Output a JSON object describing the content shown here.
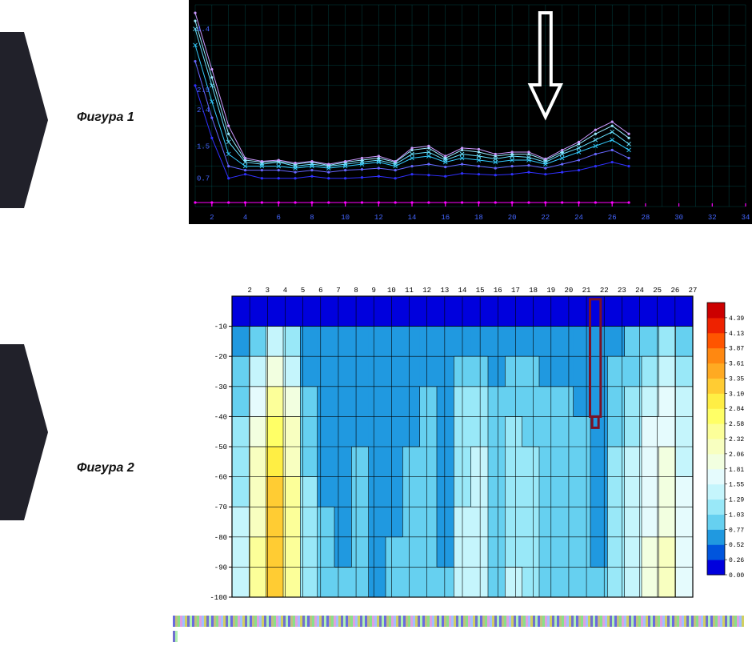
{
  "figure1": {
    "label": "Фигура 1",
    "type": "line",
    "background_color": "#000000",
    "gridline_color": "#00cccc",
    "axis_label_color": "#4466ff",
    "xaxis_tick_color": "#ff00ff",
    "xlim": [
      1,
      34
    ],
    "ylim": [
      0,
      5
    ],
    "xtick_step": 2,
    "yticks": [
      0.7,
      1.5,
      2.4,
      2.9,
      4.4
    ],
    "font_size": 9,
    "arrow": {
      "x": 22,
      "color": "#ffffff",
      "stroke_width": 4,
      "head_w": 38,
      "head_h": 40,
      "shaft_h": 90,
      "shaft_w": 14
    },
    "series": [
      {
        "color": "#ff00ff",
        "width": 1,
        "marker": "dot",
        "y": [
          0.1,
          0.1,
          0.1,
          0.1,
          0.1,
          0.1,
          0.1,
          0.1,
          0.1,
          0.1,
          0.1,
          0.1,
          0.1,
          0.1,
          0.1,
          0.1,
          0.1,
          0.1,
          0.1,
          0.1,
          0.1,
          0.1,
          0.1,
          0.1,
          0.1,
          0.1,
          0.1
        ]
      },
      {
        "color": "#3030ff",
        "width": 1,
        "marker": "dot",
        "y": [
          3.0,
          1.7,
          0.7,
          0.8,
          0.7,
          0.7,
          0.7,
          0.75,
          0.7,
          0.7,
          0.72,
          0.75,
          0.7,
          0.8,
          0.78,
          0.75,
          0.82,
          0.8,
          0.78,
          0.8,
          0.85,
          0.8,
          0.85,
          0.9,
          1.0,
          1.1,
          1.0
        ]
      },
      {
        "color": "#6666ff",
        "width": 1,
        "marker": "dot",
        "y": [
          3.6,
          2.2,
          1.0,
          0.9,
          0.9,
          0.9,
          0.85,
          0.9,
          0.85,
          0.9,
          0.92,
          0.95,
          0.9,
          1.0,
          1.05,
          0.98,
          1.05,
          1.0,
          0.95,
          1.0,
          1.02,
          0.95,
          1.05,
          1.15,
          1.3,
          1.4,
          1.2
        ]
      },
      {
        "color": "#33ccff",
        "width": 1,
        "marker": "x",
        "y": [
          4.0,
          2.6,
          1.3,
          1.0,
          1.0,
          1.0,
          0.95,
          1.0,
          0.95,
          1.0,
          1.05,
          1.1,
          1.0,
          1.2,
          1.25,
          1.1,
          1.2,
          1.15,
          1.1,
          1.15,
          1.15,
          1.05,
          1.2,
          1.35,
          1.5,
          1.65,
          1.4
        ]
      },
      {
        "color": "#66e0ff",
        "width": 1,
        "marker": "x",
        "y": [
          4.4,
          3.0,
          1.6,
          1.1,
          1.05,
          1.1,
          1.0,
          1.05,
          1.0,
          1.05,
          1.1,
          1.15,
          1.05,
          1.3,
          1.35,
          1.15,
          1.3,
          1.25,
          1.18,
          1.25,
          1.22,
          1.1,
          1.3,
          1.45,
          1.65,
          1.85,
          1.55
        ]
      },
      {
        "color": "#99eaff",
        "width": 1,
        "marker": "dot",
        "y": [
          4.6,
          3.2,
          1.8,
          1.15,
          1.1,
          1.12,
          1.05,
          1.1,
          1.02,
          1.1,
          1.15,
          1.2,
          1.1,
          1.4,
          1.45,
          1.2,
          1.4,
          1.35,
          1.25,
          1.3,
          1.3,
          1.15,
          1.35,
          1.55,
          1.8,
          2.0,
          1.7
        ]
      },
      {
        "color": "#cc99ff",
        "width": 1,
        "marker": "dot",
        "y": [
          4.8,
          3.4,
          2.0,
          1.2,
          1.12,
          1.15,
          1.08,
          1.12,
          1.05,
          1.12,
          1.2,
          1.25,
          1.12,
          1.45,
          1.5,
          1.25,
          1.45,
          1.42,
          1.3,
          1.35,
          1.35,
          1.18,
          1.4,
          1.6,
          1.9,
          2.1,
          1.8
        ]
      }
    ]
  },
  "figure2": {
    "label": "Фигура 2",
    "type": "heatmap",
    "plot_bg": "#ffffff",
    "gridline_color": "#000000",
    "axis_font_size": 9,
    "axis_color": "#000000",
    "xlim": [
      1,
      27
    ],
    "ylim": [
      -100,
      0
    ],
    "xtick_step": 1,
    "ytick_step": 10,
    "marker": {
      "x": 21.5,
      "y_top": -1,
      "y_bot": -40,
      "color": "#7a1225",
      "stroke_width": 3,
      "width": 0.6
    },
    "colorscale": {
      "levels": [
        0.0,
        0.26,
        0.52,
        0.77,
        1.03,
        1.29,
        1.55,
        1.81,
        2.06,
        2.32,
        2.58,
        2.84,
        3.1,
        3.35,
        3.61,
        3.87,
        4.13,
        4.39
      ],
      "colors": [
        "#0000dd",
        "#0055dd",
        "#2099e0",
        "#66d0f0",
        "#99e8f8",
        "#c5f5fc",
        "#e5fbfd",
        "#f2ffe0",
        "#f8ffc0",
        "#fcff99",
        "#ffff66",
        "#ffee44",
        "#ffcc33",
        "#ffaa22",
        "#ff8811",
        "#ff5500",
        "#ee2200",
        "#cc0000"
      ],
      "font_size": 8
    },
    "grid": {
      "cols": 27,
      "rows": 10,
      "values": [
        [
          0.05,
          0.05,
          0.05,
          0.05,
          0.05,
          0.05,
          0.05,
          0.05,
          0.05,
          0.05,
          0.05,
          0.05,
          0.05,
          0.05,
          0.05,
          0.05,
          0.05,
          0.05,
          0.05,
          0.05,
          0.05,
          0.05,
          0.05,
          0.05,
          0.05,
          0.05,
          0.05
        ],
        [
          0.6,
          0.9,
          1.3,
          1.1,
          0.6,
          0.55,
          0.55,
          0.6,
          0.55,
          0.55,
          0.55,
          0.6,
          0.55,
          0.7,
          0.75,
          0.6,
          0.7,
          0.65,
          0.6,
          0.62,
          0.6,
          0.58,
          0.7,
          0.8,
          0.9,
          1.05,
          0.9
        ],
        [
          0.8,
          1.4,
          2.0,
          1.5,
          0.7,
          0.6,
          0.6,
          0.65,
          0.6,
          0.62,
          0.62,
          0.7,
          0.6,
          0.9,
          0.95,
          0.7,
          0.85,
          0.8,
          0.7,
          0.72,
          0.65,
          0.62,
          0.85,
          1.0,
          1.2,
          1.35,
          1.1
        ],
        [
          1.0,
          1.8,
          2.5,
          1.9,
          0.85,
          0.65,
          0.65,
          0.7,
          0.62,
          0.65,
          0.7,
          0.8,
          0.65,
          1.05,
          1.15,
          0.8,
          1.0,
          0.92,
          0.8,
          0.8,
          0.72,
          0.65,
          0.95,
          1.15,
          1.4,
          1.6,
          1.3
        ],
        [
          1.1,
          2.0,
          2.8,
          2.1,
          0.95,
          0.7,
          0.68,
          0.75,
          0.65,
          0.7,
          0.75,
          0.85,
          0.68,
          1.15,
          1.25,
          0.85,
          1.08,
          1.0,
          0.85,
          0.85,
          0.78,
          0.68,
          1.0,
          1.25,
          1.55,
          1.8,
          1.4
        ],
        [
          1.2,
          2.15,
          3.0,
          2.25,
          1.0,
          0.72,
          0.7,
          0.78,
          0.68,
          0.72,
          0.78,
          0.9,
          0.7,
          1.22,
          1.32,
          0.9,
          1.15,
          1.05,
          0.9,
          0.9,
          0.82,
          0.7,
          1.05,
          1.32,
          1.65,
          1.9,
          1.5
        ],
        [
          1.25,
          2.25,
          3.1,
          2.35,
          1.05,
          0.75,
          0.72,
          0.8,
          0.7,
          0.75,
          0.8,
          0.92,
          0.72,
          1.28,
          1.38,
          0.92,
          1.2,
          1.1,
          0.92,
          0.92,
          0.85,
          0.72,
          1.1,
          1.38,
          1.72,
          2.0,
          1.55
        ],
        [
          1.3,
          2.3,
          3.2,
          2.4,
          1.1,
          0.78,
          0.74,
          0.82,
          0.72,
          0.76,
          0.82,
          0.95,
          0.74,
          1.32,
          1.42,
          0.95,
          1.24,
          1.14,
          0.95,
          0.95,
          0.88,
          0.74,
          1.14,
          1.42,
          1.78,
          2.05,
          1.6
        ],
        [
          1.32,
          2.35,
          3.25,
          2.45,
          1.12,
          0.8,
          0.76,
          0.84,
          0.74,
          0.78,
          0.84,
          0.98,
          0.76,
          1.35,
          1.45,
          0.98,
          1.28,
          1.16,
          0.98,
          0.98,
          0.9,
          0.76,
          1.16,
          1.45,
          1.82,
          2.1,
          1.62
        ],
        [
          1.35,
          2.4,
          3.3,
          2.5,
          1.15,
          0.82,
          0.78,
          0.86,
          0.76,
          0.8,
          0.86,
          1.0,
          0.78,
          1.38,
          1.48,
          1.0,
          1.3,
          1.18,
          1.0,
          1.0,
          0.92,
          0.78,
          1.18,
          1.48,
          1.85,
          2.15,
          1.65
        ]
      ]
    }
  },
  "noise_strip": {
    "colors": [
      "#6a6ae0",
      "#c0c080",
      "#88e088",
      "#e0a0e0",
      "#a0c0ff",
      "#d0d060",
      "#7070d0",
      "#b0f0b0"
    ]
  }
}
